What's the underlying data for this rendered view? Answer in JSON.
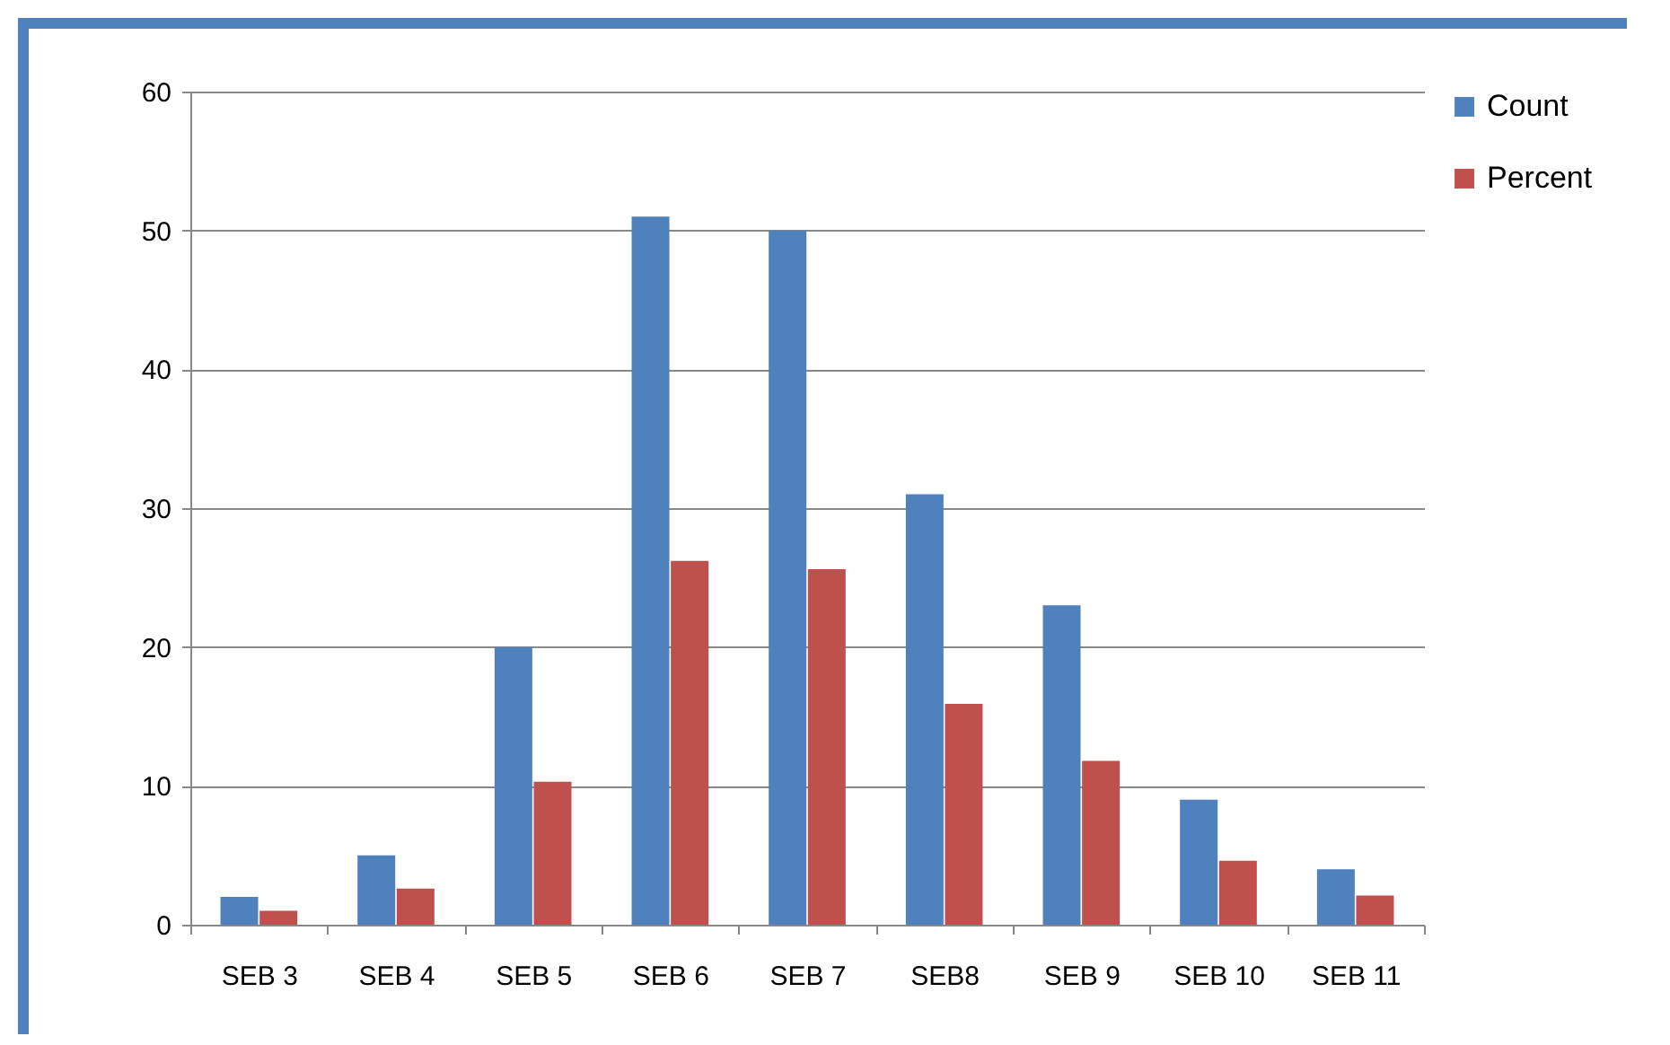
{
  "chart_data": {
    "type": "bar",
    "categories": [
      "SEB 3",
      "SEB 4",
      "SEB 5",
      "SEB 6",
      "SEB 7",
      "SEB8",
      "SEB 9",
      "SEB 10",
      "SEB 11"
    ],
    "series": [
      {
        "name": "Count",
        "color": "#4f81bd",
        "values": [
          2,
          5,
          20,
          51,
          50,
          31,
          23,
          9,
          4
        ]
      },
      {
        "name": "Percent",
        "color": "#c0504d",
        "values": [
          1.0,
          2.6,
          10.3,
          26.2,
          25.6,
          15.9,
          11.8,
          4.6,
          2.1
        ]
      }
    ],
    "ylim": [
      0,
      60
    ],
    "yticks": [
      0,
      10,
      20,
      30,
      40,
      50,
      60
    ],
    "grid": "y",
    "legend": "right"
  }
}
